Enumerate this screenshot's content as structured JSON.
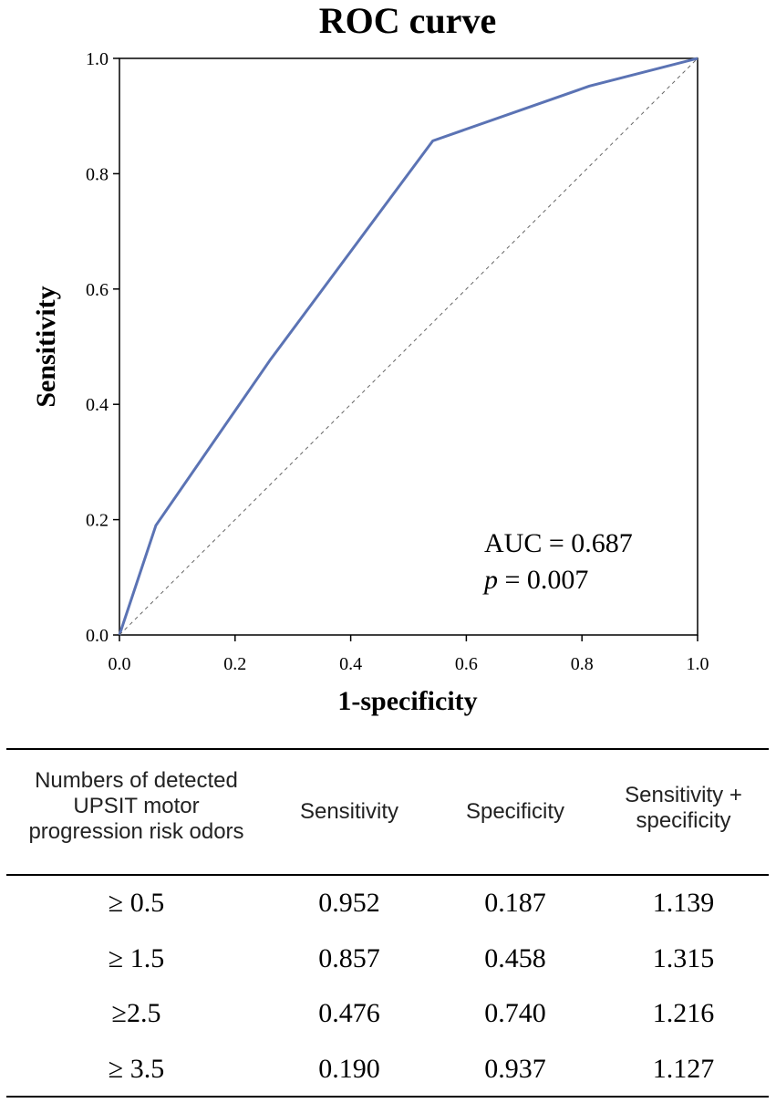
{
  "chart_data": {
    "type": "line",
    "title": "ROC curve",
    "xlabel": "1-specificity",
    "ylabel": "Sensitivity",
    "xlim": [
      0,
      1
    ],
    "ylim": [
      0,
      1
    ],
    "xticks": [
      "0.0",
      "0.2",
      "0.4",
      "0.6",
      "0.8",
      "1.0"
    ],
    "yticks": [
      "0.0",
      "0.2",
      "0.4",
      "0.6",
      "0.8",
      "1.0"
    ],
    "series": [
      {
        "name": "ROC",
        "color": "#5b73b4",
        "x": [
          0,
          0.063,
          0.26,
          0.542,
          0.813,
          1.0
        ],
        "y": [
          0,
          0.19,
          0.476,
          0.857,
          0.952,
          1.0
        ]
      },
      {
        "name": "reference",
        "color": "#666666",
        "style": "dashed",
        "x": [
          0,
          1
        ],
        "y": [
          0,
          1
        ]
      }
    ],
    "annotations": {
      "auc": "AUC = 0.687",
      "p_symbol": "p",
      "p_value": " = 0.007"
    }
  },
  "table": {
    "headers": {
      "col1": [
        "Numbers of detected",
        "UPSIT motor",
        "progression risk odors"
      ],
      "col2": [
        "Sensitivity"
      ],
      "col3": [
        "Specificity"
      ],
      "col4": [
        "Sensitivity +",
        "specificity"
      ]
    },
    "rows": [
      [
        "≥ 0.5",
        "0.952",
        "0.187",
        "1.139"
      ],
      [
        "≥ 1.5",
        "0.857",
        "0.458",
        "1.315"
      ],
      [
        "≥2.5",
        "0.476",
        "0.740",
        "1.216"
      ],
      [
        "≥ 3.5",
        "0.190",
        "0.937",
        "1.127"
      ]
    ]
  }
}
